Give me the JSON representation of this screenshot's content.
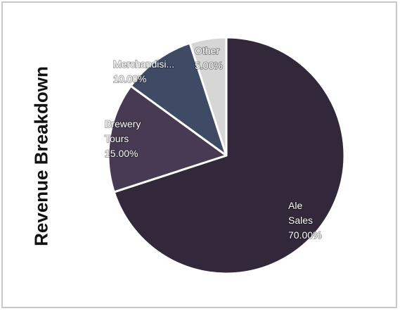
{
  "chart_data": {
    "type": "pie",
    "title": "Revenue Breakdown",
    "start_angle_deg": 0,
    "direction": "clockwise",
    "slices": [
      {
        "name": "Ale Sales",
        "label_lines": [
          "Ale",
          "Sales",
          "70.00%"
        ],
        "value": 70.0,
        "color": "#33283a"
      },
      {
        "name": "Brewery Tours",
        "label_lines": [
          "Brewery",
          "Tours",
          "15.00%"
        ],
        "value": 15.0,
        "color": "#473a52"
      },
      {
        "name": "Merchandisi...",
        "label_lines": [
          "Merchandisi...",
          "10.00%"
        ],
        "value": 10.0,
        "color": "#3f4a64"
      },
      {
        "name": "Other",
        "label_lines": [
          "Other",
          "5.00%"
        ],
        "value": 5.0,
        "color": "#d6d6d6"
      }
    ],
    "stroke_color": "#ffffff"
  }
}
